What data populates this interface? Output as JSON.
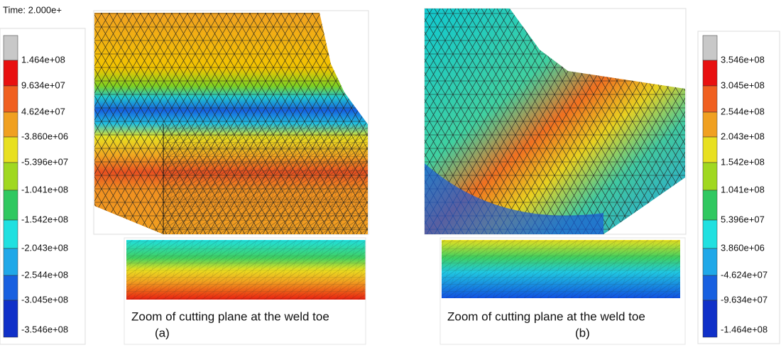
{
  "time_label": "Time: 2.000e+",
  "legend_left": {
    "labels": [
      "1.464e+08",
      "9.634e+07",
      "4.624e+07",
      "-3.860e+06",
      "-5.396e+07",
      "-1.041e+08",
      "-1.542e+08",
      "-2.043e+08",
      "-2.544e+08",
      "-3.045e+08",
      "-3.546e+08"
    ]
  },
  "legend_right": {
    "labels": [
      "3.546e+08",
      "3.045e+08",
      "2.544e+08",
      "2.043e+08",
      "1.542e+08",
      "1.041e+08",
      "5.396e+07",
      "3.860e+06",
      "-4.624e+07",
      "-9.634e+07",
      "-1.464e+08"
    ]
  },
  "panel_a": {
    "caption": "Zoom of cutting plane at the weld toe",
    "label": "(a)"
  },
  "panel_b": {
    "caption": "Zoom of cutting plane at the weld toe",
    "label": "(b)"
  }
}
